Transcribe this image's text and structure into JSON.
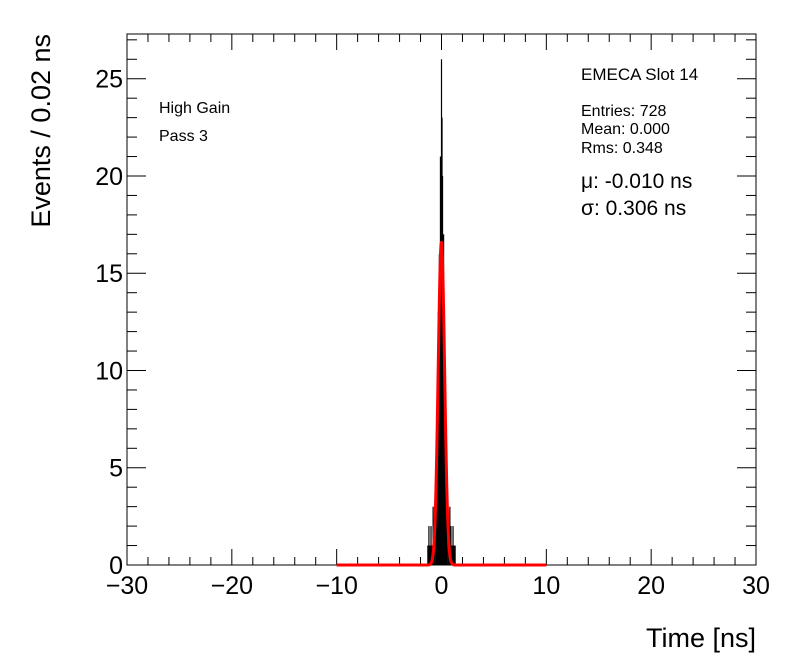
{
  "chart_data": {
    "type": "histogram",
    "xlabel": "Time [ns]",
    "ylabel": "Events / 0.02 ns",
    "xlim": [
      -30,
      30
    ],
    "ylim": [
      0,
      27.3
    ],
    "x_ticks": [
      -30,
      -20,
      -10,
      0,
      10,
      20,
      30
    ],
    "x_tick_labels": [
      "−30",
      "−20",
      "−10",
      "0",
      "10",
      "20",
      "30"
    ],
    "y_ticks": [
      0,
      5,
      10,
      15,
      20,
      25
    ],
    "y_tick_labels": [
      "0",
      "5",
      "10",
      "15",
      "20",
      "25"
    ],
    "grid": false,
    "annotations_left": [
      "High Gain",
      "Pass 3"
    ],
    "title": "EMECA Slot 14",
    "stats": [
      "Entries: 728",
      "Mean: 0.000",
      "Rms: 0.348"
    ],
    "fit_params": [
      "μ: -0.010 ns",
      "σ: 0.306 ns"
    ],
    "histogram": {
      "name": "data",
      "color": "#000000",
      "bin_width": 0.02,
      "bins": [
        [
          -1.3,
          1
        ],
        [
          -1.2,
          2
        ],
        [
          -1.1,
          1
        ],
        [
          -1.0,
          2
        ],
        [
          -0.9,
          1
        ],
        [
          -0.8,
          3
        ],
        [
          -0.7,
          2
        ],
        [
          -0.6,
          4
        ],
        [
          -0.5,
          5
        ],
        [
          -0.45,
          3
        ],
        [
          -0.4,
          7
        ],
        [
          -0.35,
          9
        ],
        [
          -0.3,
          13
        ],
        [
          -0.25,
          10
        ],
        [
          -0.2,
          16
        ],
        [
          -0.15,
          14
        ],
        [
          -0.1,
          21
        ],
        [
          -0.05,
          17
        ],
        [
          0.0,
          26
        ],
        [
          0.05,
          23
        ],
        [
          0.1,
          20
        ],
        [
          0.15,
          15
        ],
        [
          0.2,
          17
        ],
        [
          0.25,
          12
        ],
        [
          0.3,
          9
        ],
        [
          0.35,
          10
        ],
        [
          0.4,
          6
        ],
        [
          0.45,
          5
        ],
        [
          0.5,
          4
        ],
        [
          0.6,
          3
        ],
        [
          0.7,
          2
        ],
        [
          0.8,
          3
        ],
        [
          0.9,
          2
        ],
        [
          1.0,
          1
        ],
        [
          1.1,
          2
        ],
        [
          1.2,
          1
        ],
        [
          1.3,
          1
        ]
      ]
    },
    "fit": {
      "name": "gaussian fit",
      "color": "#ff0000",
      "type": "gaussian",
      "mu": -0.01,
      "sigma": 0.306,
      "amplitude": 16.6,
      "range": [
        -10,
        10
      ]
    }
  }
}
